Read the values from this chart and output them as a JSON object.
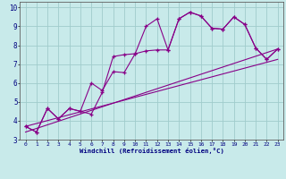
{
  "xlabel": "Windchill (Refroidissement éolien,°C)",
  "bg_color": "#c8eaea",
  "grid_color": "#a0cccc",
  "line_color": "#880088",
  "xlim": [
    -0.5,
    23.5
  ],
  "ylim": [
    3.0,
    10.3
  ],
  "xticks": [
    0,
    1,
    2,
    3,
    4,
    5,
    6,
    7,
    8,
    9,
    10,
    11,
    12,
    13,
    14,
    15,
    16,
    17,
    18,
    19,
    20,
    21,
    22,
    23
  ],
  "yticks": [
    3,
    4,
    5,
    6,
    7,
    8,
    9,
    10
  ],
  "series1_x": [
    0,
    1,
    2,
    3,
    4,
    5,
    6,
    7,
    8,
    9,
    10,
    11,
    12,
    13,
    14,
    15,
    16,
    17,
    18,
    19,
    20,
    21,
    22,
    23
  ],
  "series1_y": [
    3.7,
    3.4,
    4.65,
    4.1,
    4.65,
    4.5,
    4.35,
    5.5,
    7.4,
    7.5,
    7.55,
    9.0,
    9.4,
    7.75,
    9.4,
    9.75,
    9.55,
    8.9,
    8.85,
    9.5,
    9.1,
    7.85,
    7.25,
    7.8
  ],
  "series2_x": [
    0,
    1,
    2,
    3,
    4,
    5,
    6,
    7,
    8,
    9,
    10,
    11,
    12,
    13,
    14,
    15,
    16,
    17,
    18,
    19,
    20,
    21,
    22,
    23
  ],
  "series2_y": [
    3.7,
    3.4,
    4.65,
    4.1,
    4.65,
    4.5,
    6.0,
    5.6,
    6.6,
    6.55,
    7.55,
    7.7,
    7.75,
    7.75,
    9.4,
    9.75,
    9.55,
    8.9,
    8.85,
    9.5,
    9.1,
    7.85,
    7.25,
    7.8
  ],
  "trend1_x": [
    0,
    23
  ],
  "trend1_y": [
    3.7,
    7.25
  ],
  "trend2_x": [
    0,
    23
  ],
  "trend2_y": [
    3.4,
    7.8
  ]
}
